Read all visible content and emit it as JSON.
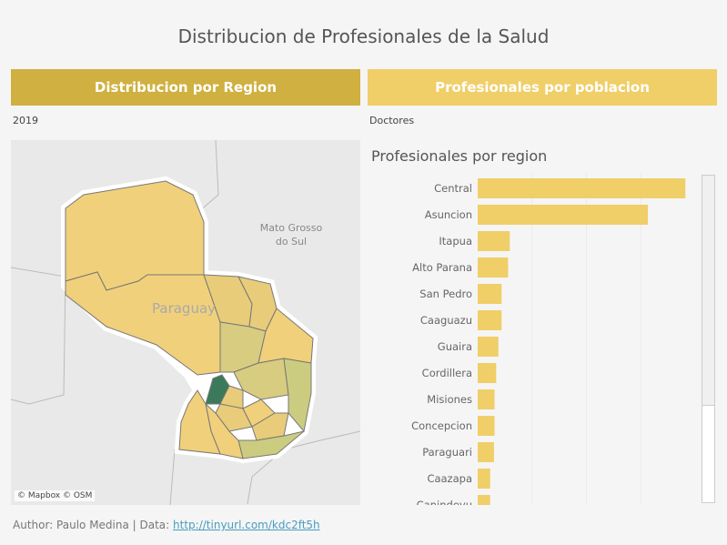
{
  "title": "Distribucion de Profesionales de la Salud",
  "left_panel": {
    "header": "Distribucion por Region",
    "header_color": "#d0b040",
    "filter": "2019",
    "map": {
      "country_label": "Paraguay",
      "neighbor_label_line1": "Mato Grosso",
      "neighbor_label_line2": "do Sul",
      "attribution": "© Mapbox © OSM",
      "highlight_color": "#3a7a5a",
      "fill_color": "#f0d07a"
    }
  },
  "right_panel": {
    "header": "Profesionales por poblacion",
    "header_color": "#f0ce68",
    "filter": "Doctores"
  },
  "chart_data": {
    "type": "bar",
    "orientation": "horizontal",
    "title": "Profesionales por region",
    "bar_color": "#f0ce68",
    "grid": true,
    "categories": [
      "Central",
      "Asuncion",
      "Itapua",
      "Alto Parana",
      "San Pedro",
      "Caaguazu",
      "Guaira",
      "Cordillera",
      "Misiones",
      "Concepcion",
      "Paraguari",
      "Caazapa",
      "Canindeyu"
    ],
    "values": [
      3.82,
      3.13,
      0.59,
      0.56,
      0.44,
      0.44,
      0.38,
      0.34,
      0.31,
      0.31,
      0.3,
      0.23,
      0.23
    ],
    "xlim": [
      0,
      4.1
    ]
  },
  "footer": {
    "author": "Author: Paulo Medina | Data: ",
    "link": "http://tinyurl.com/kdc2ft5h"
  }
}
